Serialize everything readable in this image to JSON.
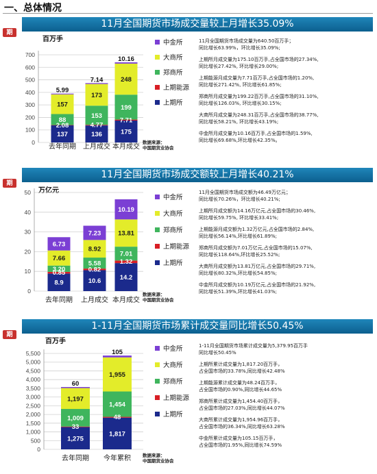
{
  "page_title": "一、总体情况",
  "logo_text": "期",
  "source_text": "数据来源：\n中国期货业协会",
  "legend": [
    {
      "name": "中金所",
      "color": "#7b3fd4"
    },
    {
      "name": "大商所",
      "color": "#e3ec2a"
    },
    {
      "name": "郑商所",
      "color": "#3fb55d"
    },
    {
      "name": "上期能源",
      "color": "#d81e25"
    },
    {
      "name": "上期所",
      "color": "#1b2a8c"
    }
  ],
  "chart_data": [
    {
      "type": "bar",
      "stacked": true,
      "title": "11月全国期货市场成交量较上月增长35.09%",
      "ylabel": "百万手",
      "ylim": [
        0,
        700
      ],
      "yticks": [
        0,
        100,
        200,
        300,
        400,
        500,
        600,
        700
      ],
      "categories": [
        "去年同期",
        "上月成交",
        "本月成交"
      ],
      "series": [
        {
          "name": "上期所",
          "values": [
            137,
            136,
            175
          ],
          "labels": [
            "137",
            "136",
            "175"
          ]
        },
        {
          "name": "上期能源",
          "values": [
            2.08,
            4.77,
            7.71
          ],
          "labels": [
            "2.08",
            "4.77",
            "7.71"
          ]
        },
        {
          "name": "郑商所",
          "values": [
            88,
            153,
            199
          ],
          "labels": [
            "88",
            "153",
            "199"
          ]
        },
        {
          "name": "大商所",
          "values": [
            157,
            173,
            248
          ],
          "labels": [
            "157",
            "173",
            "248"
          ]
        },
        {
          "name": "中金所",
          "values": [
            5.99,
            7.14,
            10.16
          ],
          "labels": [
            "5.99",
            "7.14",
            "10.16"
          ]
        }
      ],
      "notes": [
        "11月全国期货市场成交量为640.50百万手；\n同比增长63.99%，环比增长35.09%;",
        "上期所月成交量为175.10百万手,占全国市场的27.34%,\n同比增长27.42%, 环比增长29.00%;",
        "上期能源月成交量为7.71百万手,占全国市场的1.20%,\n同比增长271.42%, 环比增长61.85%;",
        "郑商所月成交量为199.22百万手,占全国市场的31.10%,\n同比增长126.03%, 环比增长30.15%;",
        "大商所月成交量为248.31百万手,占全国市场的38.77%,\n同比增长58.21%, 环比增长43.19%;",
        "中金所月成交量为10.16百万手,占全国市场的1.59%,\n同比增长69.68%,环比增长42.35%。"
      ]
    },
    {
      "type": "bar",
      "stacked": true,
      "title": "11月全国期货市场成交额较上月增长40.21%",
      "ylabel": "万亿元",
      "ylim": [
        0,
        50
      ],
      "yticks": [
        0,
        10,
        20,
        30,
        40,
        50
      ],
      "categories": [
        "去年同期",
        "上月成交",
        "本月成交"
      ],
      "series": [
        {
          "name": "上期所",
          "values": [
            8.9,
            10.6,
            14.2
          ],
          "labels": [
            "8.9",
            "10.6",
            "14.2"
          ]
        },
        {
          "name": "上期能源",
          "values": [
            0.85,
            0.82,
            1.32
          ],
          "labels": [
            "0.85",
            "0.82",
            "1.32"
          ]
        },
        {
          "name": "郑商所",
          "values": [
            3.2,
            5.58,
            7.01
          ],
          "labels": [
            "3.20",
            "5.58",
            "7.01"
          ]
        },
        {
          "name": "大商所",
          "values": [
            7.66,
            8.92,
            13.81
          ],
          "labels": [
            "7.66",
            "8.92",
            "13.81"
          ]
        },
        {
          "name": "中金所",
          "values": [
            6.73,
            7.23,
            10.19
          ],
          "labels": [
            "6.73",
            "7.23",
            "10.19"
          ]
        }
      ],
      "notes": [
        "11月全国期货市场成交额为46.49万亿元；\n同比增长70.26%，环比增长40.21%;",
        "上期所月成交额为14.16万亿元,占全国市场的30.46%,\n同比增长59.75%, 环比增长33.41%;",
        "上期能源月成交额为1.32万亿元,占全国市场的2.84%,\n同比增长56.14%,环比增长61.89%;",
        "郑商所月成交额为7.01万亿元,占全国市场的15.07%,\n同比增长118.64%,环比增长25.52%;",
        "大商所月成交额为13.81万亿元,占全国市场的29.71%,\n同比增长80.32%,环比增长54.85%;",
        "中金所月成交额为10.19万亿元,占全国市场的21.92%,\n同比增长51.39%,环比增长41.03%;"
      ]
    },
    {
      "type": "bar",
      "stacked": true,
      "title": "1-11月全国期货市场累计成交量同比增长50.45%",
      "ylabel": "百万手",
      "ylim": [
        0,
        5500
      ],
      "yticks": [
        0,
        500,
        1000,
        1500,
        2000,
        2500,
        3000,
        3500,
        4000,
        4500,
        5000,
        5500
      ],
      "categories": [
        "去年同期",
        "今年累积"
      ],
      "series": [
        {
          "name": "上期所",
          "values": [
            1275,
            1817
          ],
          "labels": [
            "1,275",
            "1,817"
          ]
        },
        {
          "name": "上期能源",
          "values": [
            33,
            48
          ],
          "labels": [
            "33",
            "48"
          ]
        },
        {
          "name": "郑商所",
          "values": [
            1009,
            1454
          ],
          "labels": [
            "1,009",
            "1,454"
          ]
        },
        {
          "name": "大商所",
          "values": [
            1197,
            1955
          ],
          "labels": [
            "1,197",
            "1,955"
          ]
        },
        {
          "name": "中金所",
          "values": [
            60,
            105
          ],
          "labels": [
            "60",
            "105"
          ]
        }
      ],
      "notes": [
        "1-11月全国期货市场累计成交量为5,379.95百万手\n同比增长50.45%",
        "上期所累计成交量为1,817.20百万手，\n占全国市场的33.78%,同比增长42.48%",
        "上期能源累计成交量为48.24百万手，\n占全国市场的0.90%,同比增长44.65%",
        "郑商所累计成交量为1,454.40百万手，\n占全国市场的27.03%,同比增长44.07%",
        "大商所累计成交量为1,954.96百万手，\n占全国市场的36.34%,同比增长63.28%",
        "中金所累计成交量为105.15百万手，\n占全国市场的1.95%,同比增长74.59%"
      ]
    }
  ]
}
